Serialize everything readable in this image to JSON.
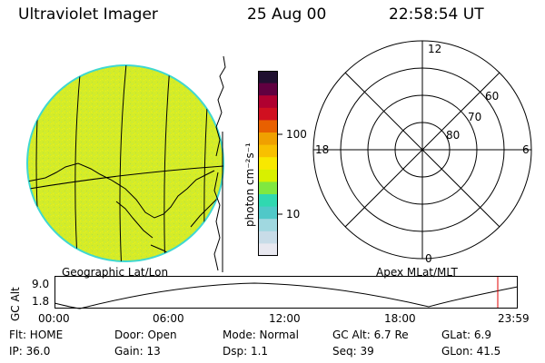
{
  "header": {
    "instrument": "Ultraviolet Imager",
    "date": "25 Aug 00",
    "time": "22:58:54 UT"
  },
  "colorbar": {
    "unit_label": "photon cm⁻²s⁻¹",
    "tick_100": "100",
    "tick_10": "10",
    "colors": [
      "#e8e8f0",
      "#c8dce8",
      "#a0d8e0",
      "#50c8c8",
      "#30d8b0",
      "#80e840",
      "#d8f000",
      "#f8e800",
      "#f8c000",
      "#f0a000",
      "#e86000",
      "#d01020",
      "#b00030",
      "#600040",
      "#201030"
    ]
  },
  "image_panel": {
    "caption": "Geographic Lat/Lon",
    "disk_color": "#d4ec28",
    "limb_color": "#40d8d0"
  },
  "polar_plot": {
    "caption": "Apex MLat/MLT",
    "mlt_12": "12",
    "mlt_18": "18",
    "mlt_6": "6",
    "mlt_0": "0",
    "lat_60": "60",
    "lat_70": "70",
    "lat_80": "80"
  },
  "altitude_plot": {
    "ylabel": "GC Alt",
    "y_top": "9.0",
    "y_bottom": "1.8",
    "x_ticks": [
      "00:00",
      "06:00",
      "12:00",
      "18:00",
      "23:59"
    ],
    "marker_color": "#e00000"
  },
  "status": {
    "flt": "Flt: HOME",
    "door": "Door: Open",
    "mode": "Mode: Normal",
    "gc_alt": "GC Alt: 6.7 Re",
    "glat": "GLat:   6.9",
    "ip": "IP: 36.0",
    "gain": "Gain: 13",
    "dsp": "Dsp:    1.1",
    "seq": "Seq: 39",
    "glon": "GLon:  41.5"
  }
}
